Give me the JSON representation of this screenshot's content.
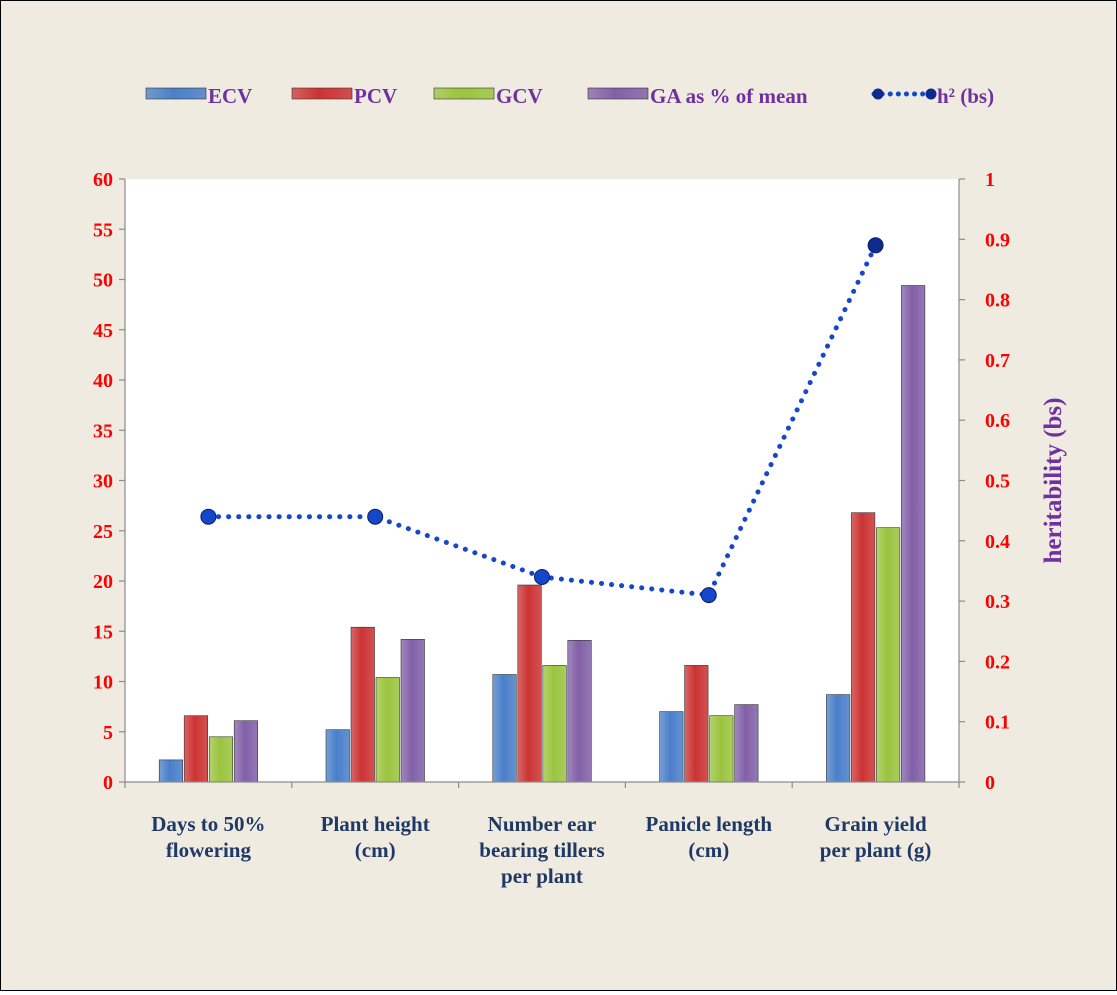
{
  "chart_data": {
    "type": "bar",
    "categories": [
      [
        "Days to 50%",
        "flowering"
      ],
      [
        "Plant height",
        "(cm)"
      ],
      [
        "Number ear",
        "bearing tillers",
        "per plant"
      ],
      [
        "Panicle length",
        "(cm)"
      ],
      [
        "Grain yield",
        "per plant (g)"
      ]
    ],
    "series": [
      {
        "name": "ECV",
        "color": "#4a7fc9",
        "values": [
          2.2,
          5.2,
          10.7,
          7.0,
          8.7
        ]
      },
      {
        "name": "PCV",
        "color": "#cc3333",
        "values": [
          6.6,
          15.4,
          19.6,
          11.6,
          26.8
        ]
      },
      {
        "name": "GCV",
        "color": "#9bc43f",
        "values": [
          4.5,
          10.4,
          11.6,
          6.6,
          25.3
        ]
      },
      {
        "name": "GA as % of mean",
        "color": "#8260a8",
        "values": [
          6.1,
          14.2,
          14.1,
          7.7,
          49.4
        ]
      }
    ],
    "line_series": {
      "name": "h² (bs)",
      "color": "#1447c9",
      "axis": "right",
      "values": [
        0.44,
        0.44,
        0.34,
        0.31,
        0.89
      ]
    },
    "y_left": {
      "min": 0,
      "max": 60,
      "ticks": [
        "0",
        "5",
        "10",
        "15",
        "20",
        "25",
        "30",
        "35",
        "40",
        "45",
        "50",
        "55",
        "60"
      ]
    },
    "y_right": {
      "min": 0,
      "max": 1,
      "label": "heritability (bs)",
      "ticks": [
        "0",
        "0.1",
        "0.2",
        "0.3",
        "0.4",
        "0.5",
        "0.6",
        "0.7",
        "0.8",
        "0.9",
        "1"
      ]
    },
    "legend_position": "top",
    "tick_label_color": "#ff0000",
    "category_label_color": "#1f3864",
    "legend_text_color": "#7030a0",
    "axis_label_color": "#7030a0",
    "grid": false
  }
}
